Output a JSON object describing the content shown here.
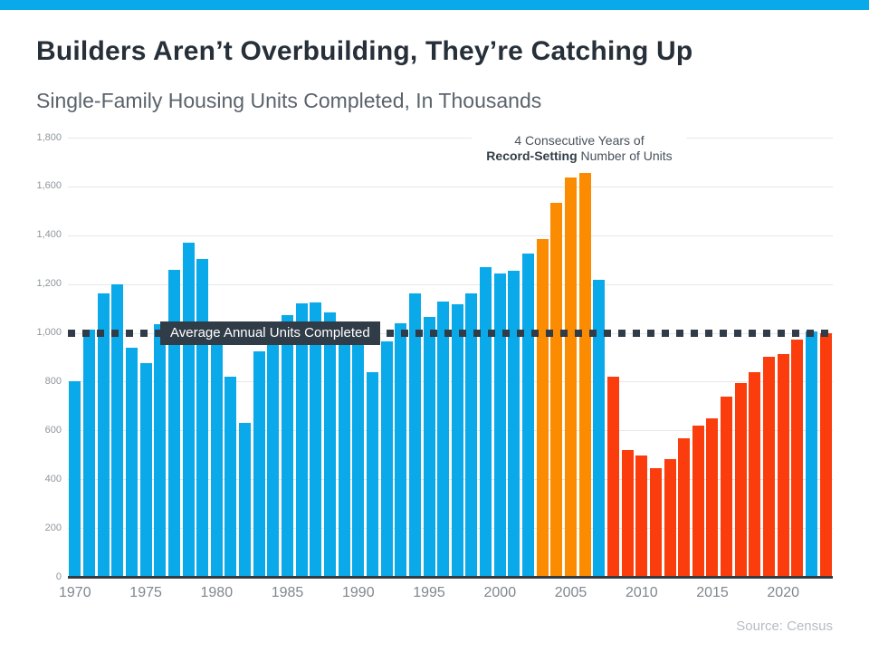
{
  "header": {
    "title": "Builders Aren’t Overbuilding, They’re Catching Up",
    "subtitle": "Single-Family Housing Units Completed, In Thousands"
  },
  "annotation": {
    "line1": "4 Consecutive Years of",
    "line2_bold": "Record-Setting",
    "line2_rest": " Number of Units"
  },
  "average_line": {
    "label": "Average Annual Units Completed",
    "value": 1000
  },
  "footer": {
    "source": "Source: Census"
  },
  "colors": {
    "banner": "#0aa9e9",
    "blue": "#0aa9e9",
    "orange": "#fb8b00",
    "red": "#fb3c0c",
    "dashed_line": "#303c48",
    "title": "#273039"
  },
  "chart_data": {
    "type": "bar",
    "title": "Builders Aren’t Overbuilding, They’re Catching Up",
    "subtitle": "Single-Family Housing Units Completed, In Thousands",
    "xlabel": "",
    "ylabel": "Single-Family Housing Units Completed, In Thousands",
    "ylim": [
      0,
      1800
    ],
    "grid": true,
    "categories": [
      1970,
      1971,
      1972,
      1973,
      1974,
      1975,
      1976,
      1977,
      1978,
      1979,
      1980,
      1981,
      1982,
      1983,
      1984,
      1985,
      1986,
      1987,
      1988,
      1989,
      1990,
      1991,
      1992,
      1993,
      1994,
      1995,
      1996,
      1997,
      1998,
      1999,
      2000,
      2001,
      2002,
      2003,
      2004,
      2005,
      2006,
      2007,
      2008,
      2009,
      2010,
      2011,
      2012,
      2013,
      2014,
      2015,
      2016,
      2017,
      2018,
      2019,
      2020,
      2021,
      2022,
      2023
    ],
    "values": [
      802,
      1014,
      1160,
      1197,
      940,
      875,
      1034,
      1258,
      1369,
      1301,
      957,
      819,
      632,
      924,
      1025,
      1072,
      1120,
      1123,
      1085,
      1026,
      966,
      838,
      964,
      1039,
      1160,
      1066,
      1129,
      1116,
      1160,
      1270,
      1242,
      1256,
      1325,
      1386,
      1531,
      1636,
      1654,
      1218,
      819,
      520,
      496,
      447,
      483,
      569,
      620,
      648,
      738,
      795,
      840,
      903,
      912,
      971,
      1005,
      998
    ],
    "bar_colors": [
      "blue",
      "blue",
      "blue",
      "blue",
      "blue",
      "blue",
      "blue",
      "blue",
      "blue",
      "blue",
      "blue",
      "blue",
      "blue",
      "blue",
      "blue",
      "blue",
      "blue",
      "blue",
      "blue",
      "blue",
      "blue",
      "blue",
      "blue",
      "blue",
      "blue",
      "blue",
      "blue",
      "blue",
      "blue",
      "blue",
      "blue",
      "blue",
      "blue",
      "orange",
      "orange",
      "orange",
      "orange",
      "blue",
      "red",
      "red",
      "red",
      "red",
      "red",
      "red",
      "red",
      "red",
      "red",
      "red",
      "red",
      "red",
      "red",
      "red",
      "blue",
      "red"
    ],
    "palette": {
      "blue": "#0aa9e9",
      "orange": "#fb8b00",
      "red": "#fb3c0c"
    },
    "yticks": [
      [
        0,
        "0"
      ],
      [
        200,
        "200"
      ],
      [
        400,
        "400"
      ],
      [
        600,
        "600"
      ],
      [
        800,
        "800"
      ],
      [
        1000,
        "1,000"
      ],
      [
        1200,
        "1,200"
      ],
      [
        1400,
        "1,400"
      ],
      [
        1600,
        "1,600"
      ],
      [
        1800,
        "1,800"
      ]
    ],
    "xticks": [
      [
        1970,
        "1970"
      ],
      [
        1975,
        "1975"
      ],
      [
        1980,
        "1980"
      ],
      [
        1985,
        "1985"
      ],
      [
        1990,
        "1990"
      ],
      [
        1995,
        "1995"
      ],
      [
        2000,
        "2000"
      ],
      [
        2005,
        "2005"
      ],
      [
        2010,
        "2010"
      ],
      [
        2015,
        "2015"
      ],
      [
        2020,
        "2020"
      ]
    ],
    "average_line_value": 1000,
    "annotation": "4 Consecutive Years of Record-Setting Number of Units",
    "legend": false
  }
}
